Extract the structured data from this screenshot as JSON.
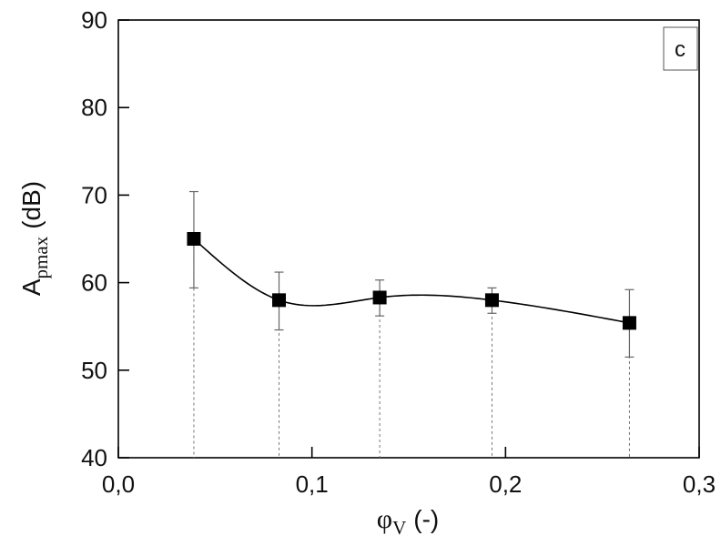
{
  "chart_data": {
    "type": "line",
    "panel_label": "c",
    "xlabel": {
      "symbol": "φ",
      "subscript": "V",
      "unit": "(-)"
    },
    "ylabel": {
      "symbol": "A",
      "subscript": "pmax",
      "unit": "(dB)"
    },
    "xlim": [
      0.0,
      0.3
    ],
    "ylim": [
      40,
      90
    ],
    "x_ticks": [
      0.0,
      0.1,
      0.2,
      0.3
    ],
    "x_tick_labels": [
      "0,0",
      "0,1",
      "0,2",
      "0,3"
    ],
    "y_ticks": [
      40,
      50,
      60,
      70,
      80,
      90
    ],
    "y_tick_labels": [
      "40",
      "50",
      "60",
      "70",
      "80",
      "90"
    ],
    "grid": false,
    "series": [
      {
        "marker": "square",
        "color": "#000000",
        "x": [
          0.039,
          0.083,
          0.135,
          0.193,
          0.264
        ],
        "y": [
          65.0,
          58.0,
          58.3,
          58.0,
          55.4
        ],
        "err_low": [
          59.4,
          54.6,
          56.2,
          56.5,
          51.5
        ],
        "err_high": [
          70.4,
          61.2,
          60.3,
          59.4,
          59.2
        ]
      }
    ]
  }
}
